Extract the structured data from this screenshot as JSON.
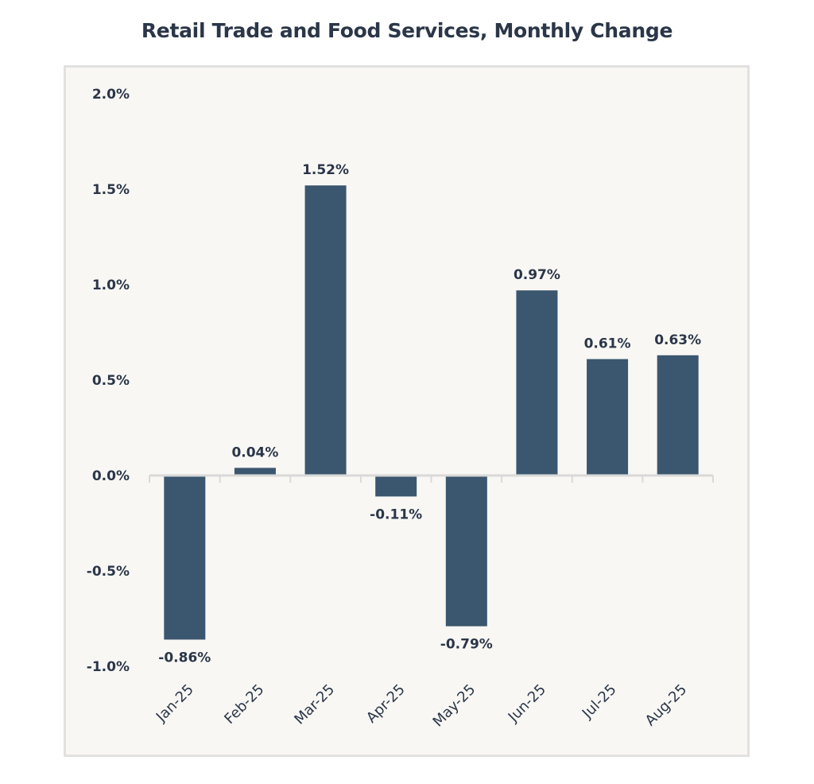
{
  "chart_data": {
    "type": "bar",
    "title": "Retail Trade and Food Services, Monthly Change",
    "xlabel": "",
    "ylabel": "",
    "categories": [
      "Jan-25",
      "Feb-25",
      "Mar-25",
      "Apr-25",
      "May-25",
      "Jun-25",
      "Jul-25",
      "Aug-25"
    ],
    "values": [
      -0.86,
      0.04,
      1.52,
      -0.11,
      -0.79,
      0.97,
      0.61,
      0.63
    ],
    "data_labels": [
      "-0.86%",
      "0.04%",
      "1.52%",
      "-0.11%",
      "-0.79%",
      "0.97%",
      "0.61%",
      "0.63%"
    ],
    "ylim": [
      -1.0,
      2.0
    ],
    "yticks": [
      2.0,
      1.5,
      1.0,
      0.5,
      0.0,
      -0.5,
      -1.0
    ],
    "ytick_labels": [
      "2.0%",
      "1.5%",
      "1.0%",
      "0.5%",
      "0.0%",
      "-0.5%",
      "-1.0%"
    ],
    "units": "%",
    "grid": false,
    "legend": "none",
    "bar_color": "#3b566f",
    "axis_color": "#d9d9d9"
  }
}
